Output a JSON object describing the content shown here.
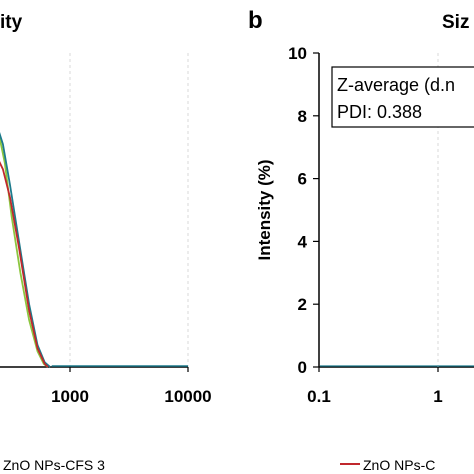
{
  "chart_data": [
    {
      "type": "line",
      "panel": "a",
      "title": "ity",
      "x_scale": "log",
      "xlim": [
        0.1,
        10000
      ],
      "x_ticks_visible": [
        "1000",
        "10000"
      ],
      "ylim": [
        0,
        10
      ],
      "legend": {
        "placement": "bottom",
        "entries": [
          {
            "name": "ZnO NPs-CFS 3",
            "color": "#c0272d"
          }
        ]
      },
      "series": [
        {
          "name": "",
          "color": "#8cc63f",
          "points": [
            [
              120,
              6.1
            ],
            [
              150,
              6.9
            ],
            [
              180,
              7.6
            ],
            [
              200,
              7.9
            ],
            [
              215,
              8.0
            ],
            [
              230,
              7.9
            ],
            [
              250,
              7.4
            ],
            [
              280,
              6.5
            ],
            [
              320,
              4.8
            ],
            [
              380,
              3.0
            ],
            [
              450,
              1.5
            ],
            [
              530,
              0.5
            ],
            [
              600,
              0.1
            ],
            [
              650,
              0
            ]
          ]
        },
        {
          "name": "",
          "color": "#1d7a8c",
          "points": [
            [
              120,
              6.0
            ],
            [
              150,
              6.8
            ],
            [
              180,
              7.4
            ],
            [
              200,
              7.7
            ],
            [
              220,
              7.8
            ],
            [
              240,
              7.7
            ],
            [
              270,
              7.1
            ],
            [
              310,
              5.8
            ],
            [
              370,
              4.0
            ],
            [
              450,
              2.0
            ],
            [
              530,
              0.7
            ],
            [
              610,
              0.15
            ],
            [
              680,
              0
            ]
          ]
        },
        {
          "name": "ZnO NPs-CFS 3",
          "color": "#c0272d",
          "points": [
            [
              120,
              5.7
            ],
            [
              150,
              6.1
            ],
            [
              180,
              6.5
            ],
            [
              200,
              6.7
            ],
            [
              220,
              6.8
            ],
            [
              240,
              6.7
            ],
            [
              270,
              6.3
            ],
            [
              310,
              5.4
            ],
            [
              370,
              3.8
            ],
            [
              450,
              1.8
            ],
            [
              530,
              0.6
            ],
            [
              610,
              0.1
            ],
            [
              650,
              0
            ]
          ]
        }
      ]
    },
    {
      "type": "line",
      "panel": "b",
      "title": "Siz",
      "x_scale": "log",
      "xlim": [
        0.1,
        100
      ],
      "x_ticks": [
        "0.1",
        "1"
      ],
      "ylim": [
        0,
        10
      ],
      "y_ticks": [
        "0",
        "2",
        "4",
        "6",
        "8",
        "10"
      ],
      "ylabel": "Intensity (%)",
      "annotation": [
        "Z-average (d.n",
        "PDI: 0.388"
      ],
      "legend": {
        "placement": "bottom",
        "entries": [
          {
            "name": "ZnO NPs-C",
            "color": "#c0272d"
          }
        ]
      },
      "series": []
    }
  ],
  "panel_a": {
    "title": "ity",
    "tick_1000": "1000",
    "tick_10000": "10000",
    "legend_label": "ZnO NPs-CFS 3"
  },
  "panel_b": {
    "letter": "b",
    "title": "Siz",
    "ylabel": "Intensity (%)",
    "annotation_line1": "Z-average (d.n",
    "annotation_line2": "PDI: 0.388",
    "legend_label": "ZnO NPs-C"
  }
}
